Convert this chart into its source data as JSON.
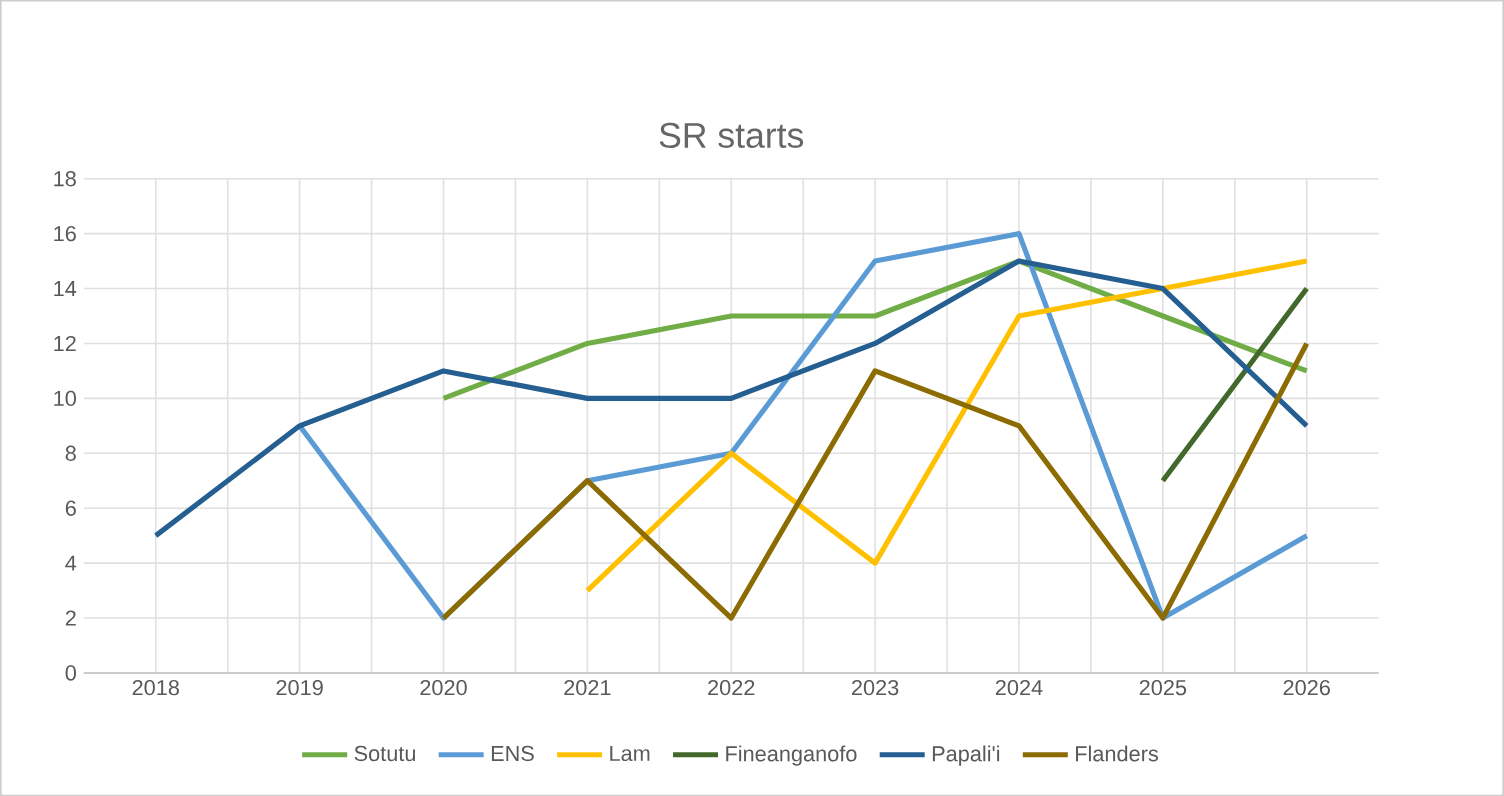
{
  "chart_data": {
    "type": "line",
    "title": "SR starts",
    "categories": [
      "2018",
      "2019",
      "2020",
      "2021",
      "2022",
      "2023",
      "2024",
      "2025",
      "2026"
    ],
    "series": [
      {
        "name": "Sotutu",
        "color": "#70ad47",
        "values": [
          null,
          null,
          10,
          12,
          13,
          13,
          15,
          13,
          11
        ]
      },
      {
        "name": "ENS",
        "color": "#5b9bd5",
        "values": [
          null,
          9,
          2,
          7,
          8,
          15,
          16,
          2,
          5
        ]
      },
      {
        "name": "Lam",
        "color": "#ffc000",
        "values": [
          null,
          null,
          null,
          3,
          8,
          4,
          13,
          14,
          15
        ]
      },
      {
        "name": "Fineanganofo",
        "color": "#43682b",
        "values": [
          null,
          null,
          null,
          null,
          null,
          null,
          null,
          7,
          14
        ]
      },
      {
        "name": "Papali'i",
        "color": "#255e91",
        "values": [
          5,
          9,
          11,
          10,
          10,
          12,
          15,
          14,
          9
        ]
      },
      {
        "name": "Flanders",
        "color": "#8c6b00",
        "values": [
          null,
          null,
          2,
          7,
          2,
          11,
          9,
          2,
          12
        ]
      }
    ],
    "ylim": [
      0,
      18
    ],
    "yticks": [
      0,
      2,
      4,
      6,
      8,
      10,
      12,
      14,
      16,
      18
    ],
    "grid": true,
    "legend": "bottom",
    "marker": "none",
    "line_style": "solid"
  }
}
